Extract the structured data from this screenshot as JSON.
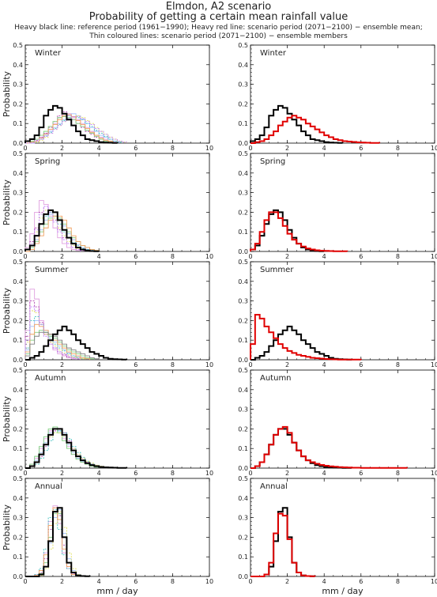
{
  "header": {
    "title": "Elmdon, A2 scenario",
    "subtitle": "Probability of getting a certain mean rainfall value",
    "note1": "Heavy black line: reference period (1961−1990); Heavy red line: scenario period (2071−2100) − ensemble mean;",
    "note2": "Thin coloured lines: scenario period (2071−2100) − ensemble members"
  },
  "colors": {
    "reference": "#000000",
    "scenario_mean": "#e00000",
    "members": [
      "#e0a0e0",
      "#b040b0",
      "#a0c0ff",
      "#40c0c0",
      "#80d080",
      "#e0e060",
      "#f0a060",
      "#c080ff",
      "#808080",
      "#ff80a0",
      "#60a0a0",
      "#a0a0ff"
    ]
  },
  "chart_data": {
    "type": "line",
    "chart_style": "step histogram panels",
    "xlabel": "mm / day",
    "ylabel": "Probability",
    "xlim": [
      0,
      10
    ],
    "ylim": [
      0,
      0.5
    ],
    "xticks": [
      0,
      2,
      4,
      6,
      8,
      10
    ],
    "yticks": [
      0.0,
      0.1,
      0.2,
      0.3,
      0.4,
      0.5
    ],
    "bin_width": 0.25,
    "panels": [
      {
        "season": "Winter",
        "reference": [
          0.01,
          0.02,
          0.04,
          0.08,
          0.14,
          0.17,
          0.19,
          0.18,
          0.15,
          0.12,
          0.09,
          0.06,
          0.04,
          0.02,
          0.015,
          0.01,
          0.005,
          0.003,
          0.002,
          0.001
        ],
        "scenario_mean": [
          0.0,
          0.005,
          0.01,
          0.02,
          0.04,
          0.06,
          0.09,
          0.11,
          0.13,
          0.14,
          0.13,
          0.12,
          0.1,
          0.085,
          0.07,
          0.055,
          0.04,
          0.03,
          0.02,
          0.015,
          0.01,
          0.008,
          0.006,
          0.004,
          0.003,
          0.002,
          0.001,
          0.001
        ],
        "members": [
          [
            0.0,
            0.005,
            0.01,
            0.03,
            0.05,
            0.07,
            0.1,
            0.13,
            0.14,
            0.15,
            0.13,
            0.12,
            0.1,
            0.08,
            0.06,
            0.04,
            0.03,
            0.02,
            0.01,
            0.005
          ],
          [
            0.0,
            0.005,
            0.015,
            0.03,
            0.05,
            0.08,
            0.11,
            0.14,
            0.16,
            0.14,
            0.12,
            0.1,
            0.08,
            0.06,
            0.045,
            0.03,
            0.02,
            0.01,
            0.005
          ],
          [
            0.0,
            0.0,
            0.01,
            0.02,
            0.04,
            0.06,
            0.08,
            0.1,
            0.12,
            0.14,
            0.15,
            0.14,
            0.12,
            0.1,
            0.08,
            0.06,
            0.04,
            0.03,
            0.02,
            0.01,
            0.005
          ],
          [
            0.0,
            0.005,
            0.01,
            0.02,
            0.035,
            0.055,
            0.075,
            0.095,
            0.115,
            0.13,
            0.135,
            0.13,
            0.12,
            0.1,
            0.085,
            0.065,
            0.05,
            0.035,
            0.02,
            0.01,
            0.005
          ],
          [
            0.0,
            0.01,
            0.02,
            0.04,
            0.06,
            0.085,
            0.11,
            0.13,
            0.135,
            0.13,
            0.12,
            0.1,
            0.085,
            0.065,
            0.05,
            0.035,
            0.02,
            0.01,
            0.005
          ],
          [
            0.0,
            0.0,
            0.005,
            0.015,
            0.03,
            0.05,
            0.07,
            0.09,
            0.11,
            0.125,
            0.135,
            0.14,
            0.13,
            0.115,
            0.1,
            0.08,
            0.06,
            0.045,
            0.03,
            0.02,
            0.01,
            0.005
          ],
          [
            0.0,
            0.005,
            0.01,
            0.025,
            0.045,
            0.07,
            0.095,
            0.12,
            0.14,
            0.145,
            0.135,
            0.115,
            0.095,
            0.075,
            0.055,
            0.04,
            0.025,
            0.015,
            0.01
          ],
          [
            0.0,
            0.0,
            0.01,
            0.02,
            0.035,
            0.05,
            0.07,
            0.09,
            0.11,
            0.125,
            0.135,
            0.135,
            0.125,
            0.11,
            0.095,
            0.075,
            0.06,
            0.045,
            0.03,
            0.02,
            0.01,
            0.005
          ]
        ]
      },
      {
        "season": "Spring",
        "reference": [
          0.01,
          0.03,
          0.08,
          0.14,
          0.19,
          0.21,
          0.2,
          0.16,
          0.11,
          0.07,
          0.04,
          0.02,
          0.01,
          0.005,
          0.002,
          0.001
        ],
        "scenario_mean": [
          0.01,
          0.04,
          0.1,
          0.16,
          0.2,
          0.2,
          0.17,
          0.13,
          0.09,
          0.06,
          0.04,
          0.025,
          0.015,
          0.01,
          0.006,
          0.004,
          0.003,
          0.002,
          0.001,
          0.001,
          0.001
        ],
        "members": [
          [
            0.02,
            0.09,
            0.2,
            0.26,
            0.24,
            0.18,
            0.12,
            0.07,
            0.04,
            0.02,
            0.01,
            0.005
          ],
          [
            0.01,
            0.05,
            0.12,
            0.2,
            0.23,
            0.21,
            0.16,
            0.11,
            0.07,
            0.04,
            0.02,
            0.01,
            0.005
          ],
          [
            0.0,
            0.02,
            0.06,
            0.11,
            0.16,
            0.19,
            0.2,
            0.17,
            0.13,
            0.09,
            0.06,
            0.035,
            0.02,
            0.01,
            0.005
          ],
          [
            0.01,
            0.03,
            0.08,
            0.14,
            0.18,
            0.2,
            0.18,
            0.14,
            0.1,
            0.07,
            0.045,
            0.03,
            0.015,
            0.01,
            0.005
          ],
          [
            0.0,
            0.02,
            0.05,
            0.1,
            0.14,
            0.17,
            0.18,
            0.17,
            0.14,
            0.1,
            0.07,
            0.05,
            0.03,
            0.02,
            0.01,
            0.005
          ],
          [
            0.01,
            0.04,
            0.1,
            0.17,
            0.21,
            0.21,
            0.17,
            0.12,
            0.08,
            0.05,
            0.03,
            0.015,
            0.01,
            0.005
          ],
          [
            0.0,
            0.01,
            0.04,
            0.08,
            0.12,
            0.16,
            0.18,
            0.18,
            0.16,
            0.12,
            0.08,
            0.05,
            0.03,
            0.02,
            0.01,
            0.005
          ],
          [
            0.01,
            0.04,
            0.11,
            0.19,
            0.23,
            0.2,
            0.15,
            0.1,
            0.06,
            0.04,
            0.02,
            0.01
          ]
        ]
      },
      {
        "season": "Summer",
        "reference": [
          0.0,
          0.01,
          0.02,
          0.04,
          0.07,
          0.1,
          0.13,
          0.15,
          0.17,
          0.15,
          0.13,
          0.1,
          0.08,
          0.06,
          0.04,
          0.03,
          0.02,
          0.01,
          0.005,
          0.003,
          0.002,
          0.001
        ],
        "scenario_mean": [
          0.08,
          0.23,
          0.21,
          0.17,
          0.14,
          0.11,
          0.08,
          0.06,
          0.045,
          0.035,
          0.025,
          0.02,
          0.015,
          0.01,
          0.008,
          0.006,
          0.004,
          0.003,
          0.002,
          0.001,
          0.001,
          0.001,
          0.001,
          0.001
        ],
        "members": [
          [
            0.15,
            0.36,
            0.31,
            0.2,
            0.13,
            0.08,
            0.05,
            0.03,
            0.02,
            0.01,
            0.005
          ],
          [
            0.12,
            0.3,
            0.27,
            0.19,
            0.13,
            0.09,
            0.06,
            0.04,
            0.025,
            0.015,
            0.01,
            0.005
          ],
          [
            0.05,
            0.17,
            0.2,
            0.18,
            0.15,
            0.12,
            0.09,
            0.07,
            0.05,
            0.035,
            0.02,
            0.015,
            0.01,
            0.005
          ],
          [
            0.06,
            0.2,
            0.22,
            0.18,
            0.14,
            0.11,
            0.08,
            0.06,
            0.045,
            0.03,
            0.02,
            0.01,
            0.005
          ],
          [
            0.03,
            0.1,
            0.14,
            0.15,
            0.14,
            0.12,
            0.11,
            0.09,
            0.07,
            0.05,
            0.04,
            0.03,
            0.02,
            0.01,
            0.005
          ],
          [
            0.09,
            0.25,
            0.24,
            0.18,
            0.13,
            0.09,
            0.07,
            0.05,
            0.035,
            0.025,
            0.015,
            0.01,
            0.005
          ],
          [
            0.04,
            0.13,
            0.18,
            0.17,
            0.15,
            0.13,
            0.1,
            0.08,
            0.06,
            0.04,
            0.03,
            0.02,
            0.01,
            0.005
          ],
          [
            0.1,
            0.27,
            0.25,
            0.18,
            0.12,
            0.08,
            0.06,
            0.04,
            0.03,
            0.02,
            0.01,
            0.005
          ],
          [
            0.02,
            0.08,
            0.12,
            0.14,
            0.14,
            0.13,
            0.12,
            0.1,
            0.08,
            0.06,
            0.05,
            0.04,
            0.03,
            0.02,
            0.01,
            0.005
          ]
        ]
      },
      {
        "season": "Autumn",
        "reference": [
          0.0,
          0.01,
          0.03,
          0.07,
          0.12,
          0.17,
          0.2,
          0.2,
          0.17,
          0.13,
          0.09,
          0.06,
          0.04,
          0.025,
          0.015,
          0.01,
          0.006,
          0.004,
          0.003,
          0.002,
          0.001,
          0.001
        ],
        "scenario_mean": [
          0.0,
          0.01,
          0.03,
          0.07,
          0.12,
          0.17,
          0.2,
          0.21,
          0.18,
          0.13,
          0.09,
          0.06,
          0.04,
          0.03,
          0.022,
          0.016,
          0.012,
          0.009,
          0.007,
          0.005,
          0.004,
          0.003,
          0.002,
          0.002,
          0.001,
          0.001,
          0.001,
          0.001,
          0.001,
          0.001,
          0.001,
          0.001,
          0.001,
          0.001
        ],
        "members": [
          [
            0.0,
            0.02,
            0.05,
            0.1,
            0.15,
            0.19,
            0.21,
            0.19,
            0.15,
            0.11,
            0.07,
            0.05,
            0.03,
            0.02,
            0.01,
            0.005
          ],
          [
            0.0,
            0.01,
            0.03,
            0.06,
            0.11,
            0.16,
            0.19,
            0.2,
            0.18,
            0.14,
            0.1,
            0.07,
            0.05,
            0.03,
            0.02,
            0.01,
            0.005
          ],
          [
            0.0,
            0.01,
            0.04,
            0.08,
            0.13,
            0.18,
            0.2,
            0.19,
            0.16,
            0.12,
            0.08,
            0.05,
            0.035,
            0.02,
            0.015,
            0.01,
            0.005
          ],
          [
            0.0,
            0.01,
            0.02,
            0.05,
            0.09,
            0.14,
            0.18,
            0.19,
            0.18,
            0.15,
            0.11,
            0.08,
            0.055,
            0.035,
            0.02,
            0.01,
            0.005
          ],
          [
            0.0,
            0.02,
            0.06,
            0.11,
            0.16,
            0.2,
            0.21,
            0.18,
            0.14,
            0.1,
            0.07,
            0.045,
            0.03,
            0.02,
            0.01,
            0.005
          ],
          [
            0.0,
            0.01,
            0.03,
            0.07,
            0.12,
            0.16,
            0.18,
            0.18,
            0.16,
            0.13,
            0.1,
            0.07,
            0.05,
            0.035,
            0.025,
            0.015,
            0.01,
            0.005
          ]
        ]
      },
      {
        "season": "Annual",
        "reference": [
          0.0,
          0.0,
          0.0,
          0.01,
          0.05,
          0.18,
          0.33,
          0.35,
          0.2,
          0.07,
          0.02,
          0.005,
          0.002,
          0.001
        ],
        "scenario_mean": [
          0.0,
          0.0,
          0.0,
          0.01,
          0.07,
          0.22,
          0.32,
          0.31,
          0.19,
          0.07,
          0.02,
          0.005,
          0.002,
          0.001
        ],
        "members": [
          [
            0.0,
            0.0,
            0.01,
            0.03,
            0.12,
            0.28,
            0.36,
            0.27,
            0.12,
            0.04,
            0.01
          ],
          [
            0.0,
            0.0,
            0.0,
            0.02,
            0.09,
            0.24,
            0.35,
            0.31,
            0.16,
            0.05,
            0.015,
            0.005
          ],
          [
            0.0,
            0.0,
            0.0,
            0.01,
            0.05,
            0.17,
            0.3,
            0.34,
            0.22,
            0.09,
            0.03,
            0.01
          ],
          [
            0.0,
            0.0,
            0.01,
            0.04,
            0.14,
            0.3,
            0.34,
            0.24,
            0.11,
            0.04,
            0.01
          ],
          [
            0.0,
            0.0,
            0.0,
            0.015,
            0.07,
            0.2,
            0.32,
            0.32,
            0.2,
            0.07,
            0.02,
            0.005
          ],
          [
            0.0,
            0.0,
            0.0,
            0.005,
            0.04,
            0.14,
            0.27,
            0.33,
            0.25,
            0.12,
            0.04,
            0.01
          ],
          [
            0.0,
            0.0,
            0.005,
            0.03,
            0.11,
            0.26,
            0.35,
            0.29,
            0.14,
            0.05,
            0.01
          ]
        ]
      }
    ]
  }
}
